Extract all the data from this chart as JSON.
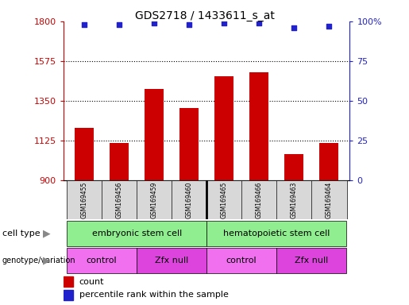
{
  "title": "GDS2718 / 1433611_s_at",
  "samples": [
    "GSM169455",
    "GSM169456",
    "GSM169459",
    "GSM169460",
    "GSM169465",
    "GSM169466",
    "GSM169463",
    "GSM169464"
  ],
  "counts": [
    1195,
    1110,
    1415,
    1310,
    1490,
    1510,
    1045,
    1110
  ],
  "percentile_ranks": [
    98,
    98,
    99,
    98,
    99,
    99,
    96,
    97
  ],
  "ylim_left": [
    900,
    1800
  ],
  "ylim_right": [
    0,
    100
  ],
  "yticks_left": [
    900,
    1125,
    1350,
    1575,
    1800
  ],
  "yticks_right": [
    0,
    25,
    50,
    75,
    100
  ],
  "bar_color": "#cc0000",
  "dot_color": "#2222cc",
  "cell_type_labels": [
    "embryonic stem cell",
    "hematopoietic stem cell"
  ],
  "cell_type_color": "#90ee90",
  "genotype_labels": [
    "control",
    "Zfx null",
    "control",
    "Zfx null"
  ],
  "genotype_color_control": "#f070f0",
  "genotype_color_zfx": "#dd44dd",
  "sample_label_color": "#d8d8d8"
}
